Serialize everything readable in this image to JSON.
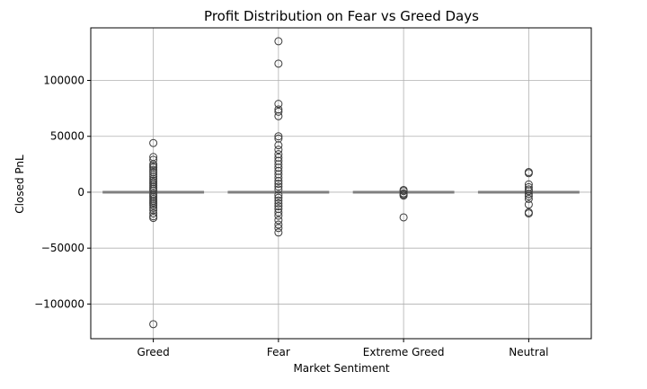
{
  "chart_data": {
    "type": "box",
    "title": "Profit Distribution on Fear vs Greed Days",
    "xlabel": "Market Sentiment",
    "ylabel": "Closed PnL",
    "categories": [
      "Greed",
      "Fear",
      "Extreme Greed",
      "Neutral"
    ],
    "ylim": [
      -131000,
      147000
    ],
    "yticks": [
      -100000,
      -50000,
      0,
      50000,
      100000
    ],
    "ytick_labels": [
      "−100000",
      "−50000",
      "0",
      "50000",
      "100000"
    ],
    "grid": true,
    "box_color": "#808080",
    "boxes": [
      {
        "category": "Greed",
        "q1": 0,
        "median": 0,
        "q3": 0,
        "whisker_low": 0,
        "whisker_high": 0,
        "outliers": [
          44000,
          31500,
          29000,
          25000,
          23500,
          22000,
          20000,
          18000,
          16000,
          14000,
          12000,
          10500,
          9000,
          7500,
          6000,
          4500,
          3000,
          1500,
          -1500,
          -3000,
          -4500,
          -6000,
          -7500,
          -9000,
          -10500,
          -12000,
          -14000,
          -16000,
          -19000,
          -21500,
          -23000,
          -118000
        ]
      },
      {
        "category": "Fear",
        "q1": 0,
        "median": 0,
        "q3": 0,
        "whisker_low": 0,
        "whisker_high": 0,
        "outliers": [
          135000,
          115000,
          79000,
          74000,
          72000,
          68000,
          50000,
          48000,
          42000,
          38000,
          34000,
          31000,
          28000,
          25000,
          22000,
          19000,
          16000,
          13000,
          10000,
          7500,
          5000,
          2500,
          -2500,
          -5000,
          -7500,
          -10000,
          -12500,
          -15000,
          -18000,
          -21000,
          -25000,
          -29000,
          -32000,
          -36000
        ]
      },
      {
        "category": "Extreme Greed",
        "q1": 0,
        "median": 0,
        "q3": 0,
        "whisker_low": 0,
        "whisker_high": 0,
        "outliers": [
          2000,
          1000,
          -1000,
          -2000,
          -3000,
          -22500
        ]
      },
      {
        "category": "Neutral",
        "q1": 0,
        "median": 0,
        "q3": 0,
        "whisker_low": 0,
        "whisker_high": 0,
        "outliers": [
          18000,
          17000,
          7000,
          4500,
          2500,
          1000,
          -1500,
          -3500,
          -6000,
          -11000,
          -18000,
          -19000
        ]
      }
    ]
  }
}
